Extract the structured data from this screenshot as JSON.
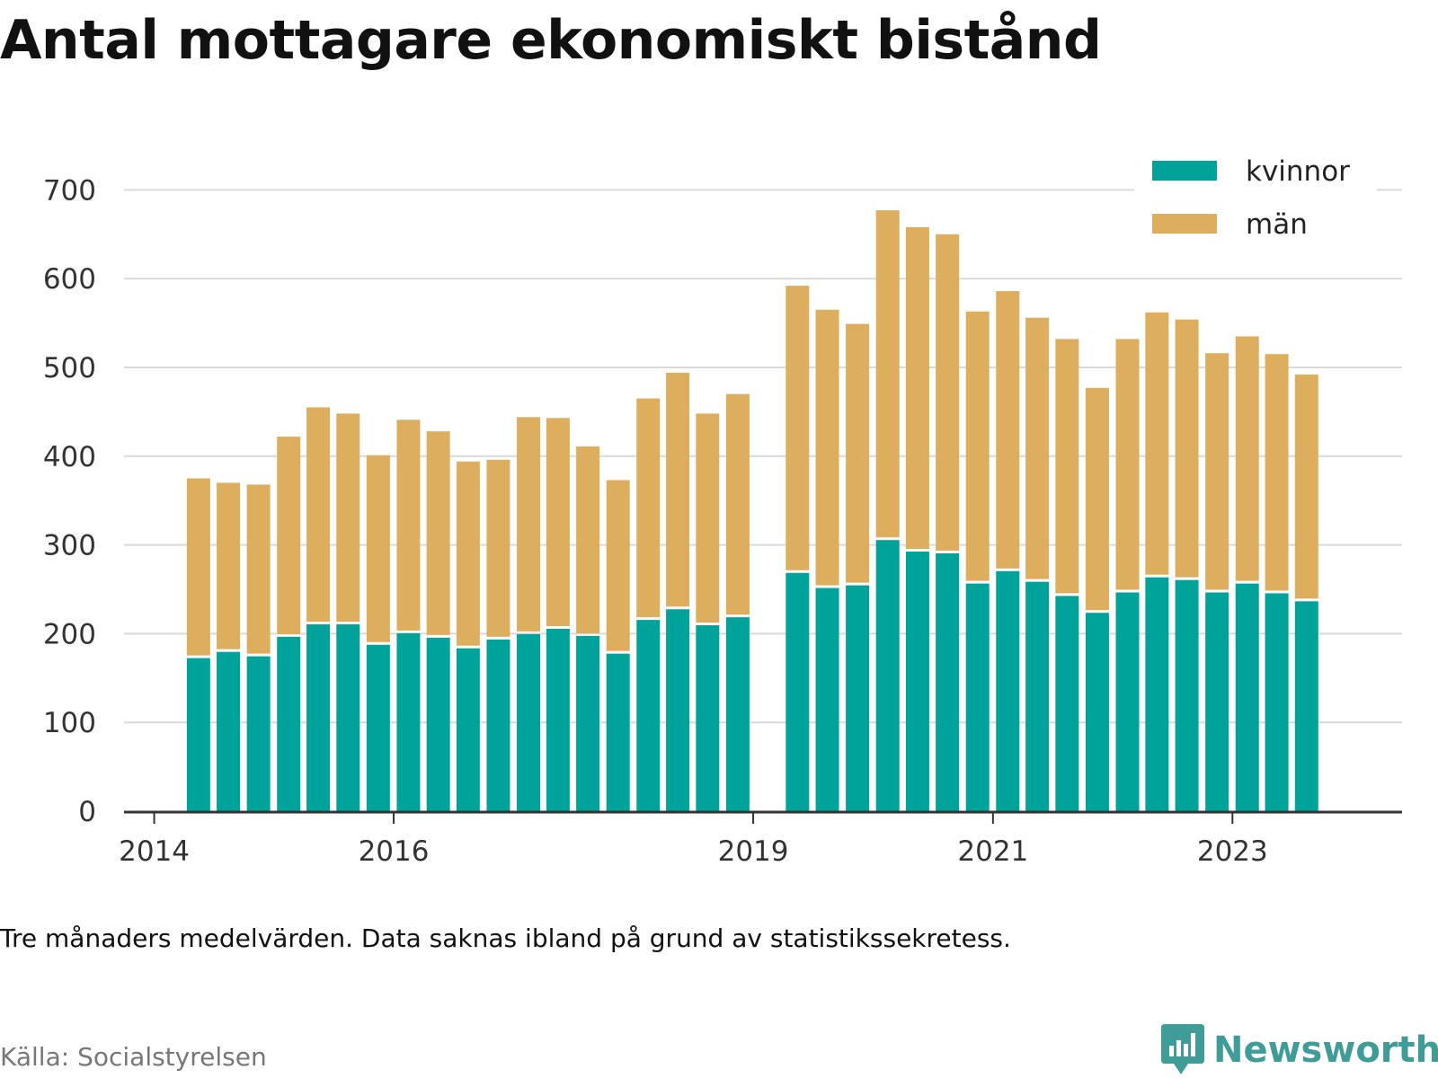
{
  "title": "Antal mottagare ekonomiskt bistånd",
  "note": "Tre månaders medelvärden. Data saknas ibland på grund av statistikssekretess.",
  "source": "Källa: Socialstyrelsen",
  "brand": {
    "name": "Newsworthy",
    "icon": "newsworthy-chart-bubble-icon"
  },
  "colors": {
    "kvinnor": "#00a39a",
    "man": "#dcae5d",
    "grid": "#d9d9d9",
    "axis": "#333333",
    "brand": "#3f9c96"
  },
  "chart_data": {
    "type": "bar",
    "stacked": true,
    "ylim": [
      0,
      700
    ],
    "yticks": [
      0,
      100,
      200,
      300,
      400,
      500,
      600,
      700
    ],
    "xlim": [
      "2013-10-01",
      "2024-06-01"
    ],
    "xticks": [
      {
        "label": "2014",
        "date": "2014-01-01"
      },
      {
        "label": "2016",
        "date": "2016-01-01"
      },
      {
        "label": "2019",
        "date": "2019-01-01"
      },
      {
        "label": "2021",
        "date": "2021-01-01"
      },
      {
        "label": "2023",
        "date": "2023-01-01"
      }
    ],
    "grid": true,
    "legend_position": "top-right",
    "legend": [
      "kvinnor",
      "män"
    ],
    "series": [
      {
        "name": "kvinnor",
        "color": "#00a39a",
        "values": [
          174,
          181,
          176,
          198,
          212,
          212,
          189,
          202,
          197,
          185,
          195,
          201,
          207,
          199,
          179,
          217,
          229,
          211,
          220,
          270,
          253,
          256,
          307,
          294,
          292,
          258,
          272,
          260,
          244,
          225,
          248,
          265,
          262,
          248,
          258,
          247,
          238
        ]
      },
      {
        "name": "män",
        "color": "#dcae5d",
        "values": [
          201,
          189,
          192,
          224,
          243,
          236,
          212,
          239,
          231,
          209,
          201,
          243,
          236,
          212,
          194,
          248,
          265,
          237,
          250,
          322,
          312,
          293,
          370,
          364,
          358,
          305,
          314,
          296,
          288,
          252,
          284,
          297,
          292,
          268,
          277,
          268,
          254
        ]
      }
    ],
    "periods": [
      "2014-04",
      "2014-07",
      "2014-10",
      "2015-01",
      "2015-04",
      "2015-07",
      "2015-10",
      "2016-01",
      "2016-04",
      "2016-07",
      "2016-10",
      "2017-01",
      "2017-04",
      "2017-07",
      "2017-10",
      "2018-01",
      "2018-04",
      "2018-07",
      "2018-10",
      "2019-04",
      "2019-07",
      "2019-10",
      "2020-01",
      "2020-04",
      "2020-07",
      "2020-10",
      "2021-01",
      "2021-04",
      "2021-07",
      "2021-10",
      "2022-01",
      "2022-04",
      "2022-07",
      "2022-10",
      "2023-01",
      "2023-04",
      "2023-07"
    ]
  }
}
